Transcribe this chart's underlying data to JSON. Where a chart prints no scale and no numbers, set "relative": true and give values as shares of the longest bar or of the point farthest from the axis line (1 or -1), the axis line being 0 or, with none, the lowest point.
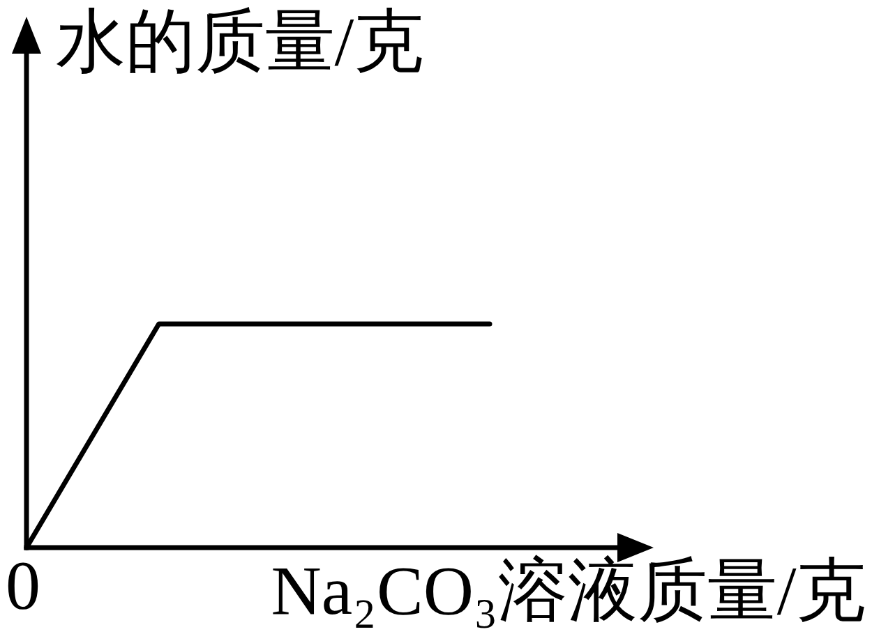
{
  "chart_data": {
    "type": "line",
    "xlabel": "Na₂CO₃溶液质量/克",
    "ylabel": "水的质量/克",
    "categories": [
      null,
      null,
      null,
      null,
      null,
      null,
      null,
      null
    ],
    "values": [
      0,
      0.5,
      1,
      1,
      1,
      1,
      1,
      1
    ],
    "relative": true,
    "color": "#000000",
    "annotations": [
      "0"
    ]
  }
}
